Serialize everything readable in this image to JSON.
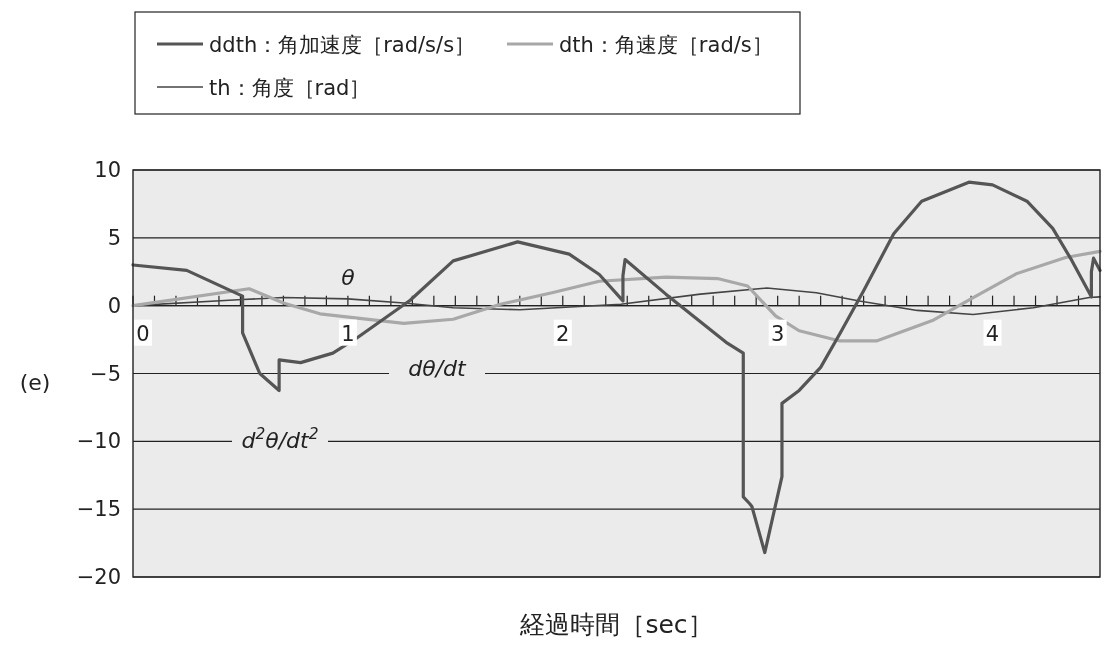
{
  "chart_data": {
    "type": "line",
    "xlabel": "経過時間［sec］",
    "xlim": [
      0,
      4.5
    ],
    "ylim": [
      -20,
      10
    ],
    "xticks": [
      0,
      {
        "value": 0.1,
        "label": null
      },
      {
        "value": 0.2,
        "label": null
      },
      {
        "value": 0.3,
        "label": null
      },
      {
        "value": 0.4,
        "label": null
      },
      {
        "value": 0.5,
        "label": null
      },
      {
        "value": 0.6,
        "label": null
      },
      {
        "value": 0.7,
        "label": null
      },
      {
        "value": 0.8,
        "label": null
      },
      {
        "value": 0.9,
        "label": null
      },
      1,
      {
        "value": 1.1,
        "label": null
      },
      {
        "value": 1.2,
        "label": null
      },
      {
        "value": 1.3,
        "label": null
      },
      {
        "value": 1.4,
        "label": null
      },
      {
        "value": 1.5,
        "label": null
      },
      {
        "value": 1.6,
        "label": null
      },
      {
        "value": 1.7,
        "label": null
      },
      {
        "value": 1.8,
        "label": null
      },
      {
        "value": 1.9,
        "label": null
      },
      2,
      {
        "value": 2.1,
        "label": null
      },
      {
        "value": 2.2,
        "label": null
      },
      {
        "value": 2.3,
        "label": null
      },
      {
        "value": 2.4,
        "label": null
      },
      {
        "value": 2.5,
        "label": null
      },
      {
        "value": 2.6,
        "label": null
      },
      {
        "value": 2.7,
        "label": null
      },
      {
        "value": 2.8,
        "label": null
      },
      {
        "value": 2.9,
        "label": null
      },
      3,
      {
        "value": 3.1,
        "label": null
      },
      {
        "value": 3.2,
        "label": null
      },
      {
        "value": 3.3,
        "label": null
      },
      {
        "value": 3.4,
        "label": null
      },
      {
        "value": 3.5,
        "label": null
      },
      {
        "value": 3.6,
        "label": null
      },
      {
        "value": 3.7,
        "label": null
      },
      {
        "value": 3.8,
        "label": null
      },
      {
        "value": 3.9,
        "label": null
      },
      4,
      {
        "value": 4.1,
        "label": null
      },
      {
        "value": 4.2,
        "label": null
      },
      {
        "value": 4.3,
        "label": null
      },
      {
        "value": 4.4,
        "label": null
      }
    ],
    "yticks": [
      {
        "value": -20,
        "label": "−20"
      },
      {
        "value": -15,
        "label": "−15"
      },
      {
        "value": -10,
        "label": "−10"
      },
      {
        "value": -5,
        "label": "−5"
      },
      0,
      5,
      10
    ],
    "grid": "y",
    "legend": "top left",
    "marker": "none",
    "series": [
      {
        "name": "ddth：角加速度［rad/s/s］",
        "color": "#555555",
        "x": [
          0,
          0.25,
          0.51,
          0.51,
          0.59,
          0.68,
          0.68,
          0.78,
          0.93,
          1.04,
          1.29,
          1.49,
          1.79,
          2.03,
          2.17,
          2.28,
          2.28,
          2.29,
          2.48,
          2.76,
          2.84,
          2.84,
          2.87,
          2.88,
          2.94,
          3.02,
          3.02,
          3.1,
          3.2,
          3.29,
          3.4,
          3.54,
          3.67,
          3.89,
          4.0,
          4.16,
          4.28,
          4.37,
          4.46,
          4.46,
          4.47,
          4.5
        ],
        "values": [
          3,
          2.6,
          0.7,
          -2.0,
          -5.0,
          -6.25,
          -4.0,
          -4.2,
          -3.5,
          -2.4,
          0.4,
          3.3,
          4.7,
          3.8,
          2.3,
          0.35,
          2.2,
          3.4,
          0.85,
          -2.7,
          -3.5,
          -14.1,
          -14.6,
          -14.8,
          -18.2,
          -12.6,
          -7.2,
          -6.25,
          -4.55,
          -2.05,
          1.1,
          5.3,
          7.7,
          9.1,
          8.9,
          7.7,
          5.7,
          3.3,
          0.65,
          2.5,
          3.5,
          2.6
        ]
      },
      {
        "name": "dth：角速度［rad/s］",
        "color": "#a8a8a8",
        "x": [
          0,
          0.54,
          0.7,
          0.87,
          1.26,
          1.49,
          1.71,
          1.95,
          2.17,
          2.48,
          2.72,
          2.86,
          2.99,
          3.1,
          3.29,
          3.46,
          3.72,
          3.91,
          4.11,
          4.34,
          4.5
        ],
        "values": [
          0,
          1.25,
          0.2,
          -0.6,
          -1.3,
          -1.0,
          0.1,
          0.95,
          1.8,
          2.1,
          2.0,
          1.45,
          -0.75,
          -1.85,
          -2.6,
          -2.6,
          -1.1,
          0.6,
          2.35,
          3.55,
          4.0
        ]
      },
      {
        "name": "th：角度［rad］",
        "color": "#444444",
        "x": [
          0,
          0.51,
          0.7,
          1.0,
          1.26,
          1.49,
          1.8,
          2.27,
          2.64,
          2.95,
          3.18,
          3.38,
          3.65,
          3.91,
          4.19,
          4.45,
          4.5
        ],
        "values": [
          0,
          0.45,
          0.6,
          0.5,
          0.2,
          -0.15,
          -0.3,
          0.1,
          0.85,
          1.3,
          0.95,
          0.35,
          -0.35,
          -0.65,
          -0.15,
          0.6,
          0.65
        ]
      }
    ],
    "annotations": [
      "θ",
      "dθ/dt",
      "d$^{2}$θ/dt$^{2}$",
      "(e)"
    ]
  }
}
